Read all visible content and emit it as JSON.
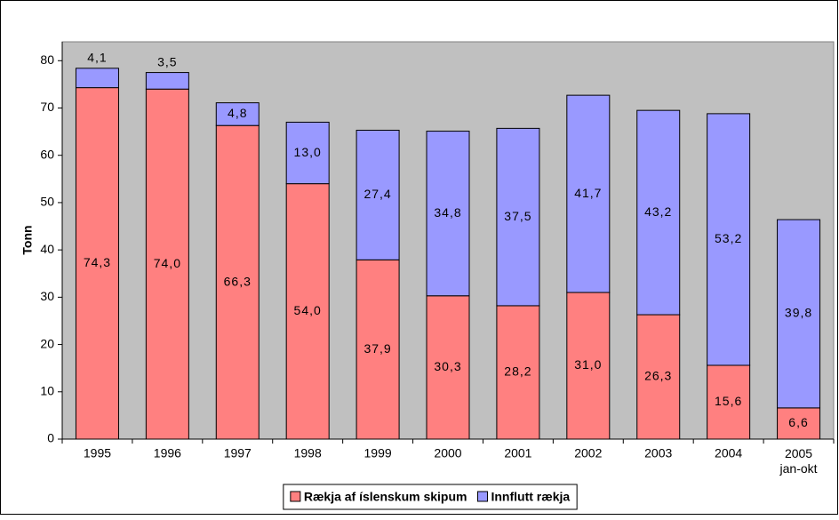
{
  "chart_data": {
    "type": "stacked-bar",
    "y_label": "Tonn",
    "categories": [
      "1995",
      "1996",
      "1997",
      "1998",
      "1999",
      "2000",
      "2001",
      "2002",
      "2003",
      "2004",
      "2005\njan-okt"
    ],
    "series": [
      {
        "name": "Rækja af íslenskum skipum",
        "color": "#ff8080",
        "values": [
          74.3,
          74.0,
          66.3,
          54.0,
          37.9,
          30.3,
          28.2,
          31.0,
          26.3,
          15.6,
          6.6
        ],
        "value_labels": [
          "74,3",
          "74,0",
          "66,3",
          "54,0",
          "37,9",
          "30,3",
          "28,2",
          "31,0",
          "26,3",
          "15,6",
          "6,6"
        ]
      },
      {
        "name": "Innflutt rækja",
        "color": "#9999ff",
        "values": [
          4.1,
          3.5,
          4.8,
          13.0,
          27.4,
          34.8,
          37.5,
          41.7,
          43.2,
          53.2,
          39.8
        ],
        "value_labels": [
          "4,1",
          "3,5",
          "4,8",
          "13,0",
          "27,4",
          "34,8",
          "37,5",
          "41,7",
          "43,2",
          "53,2",
          "39,8"
        ]
      }
    ],
    "ylim": [
      0,
      84
    ],
    "yticks": [
      0,
      10,
      20,
      30,
      40,
      50,
      60,
      70,
      80
    ],
    "plot_background": "#c0c0c0",
    "legend": "bottom"
  }
}
